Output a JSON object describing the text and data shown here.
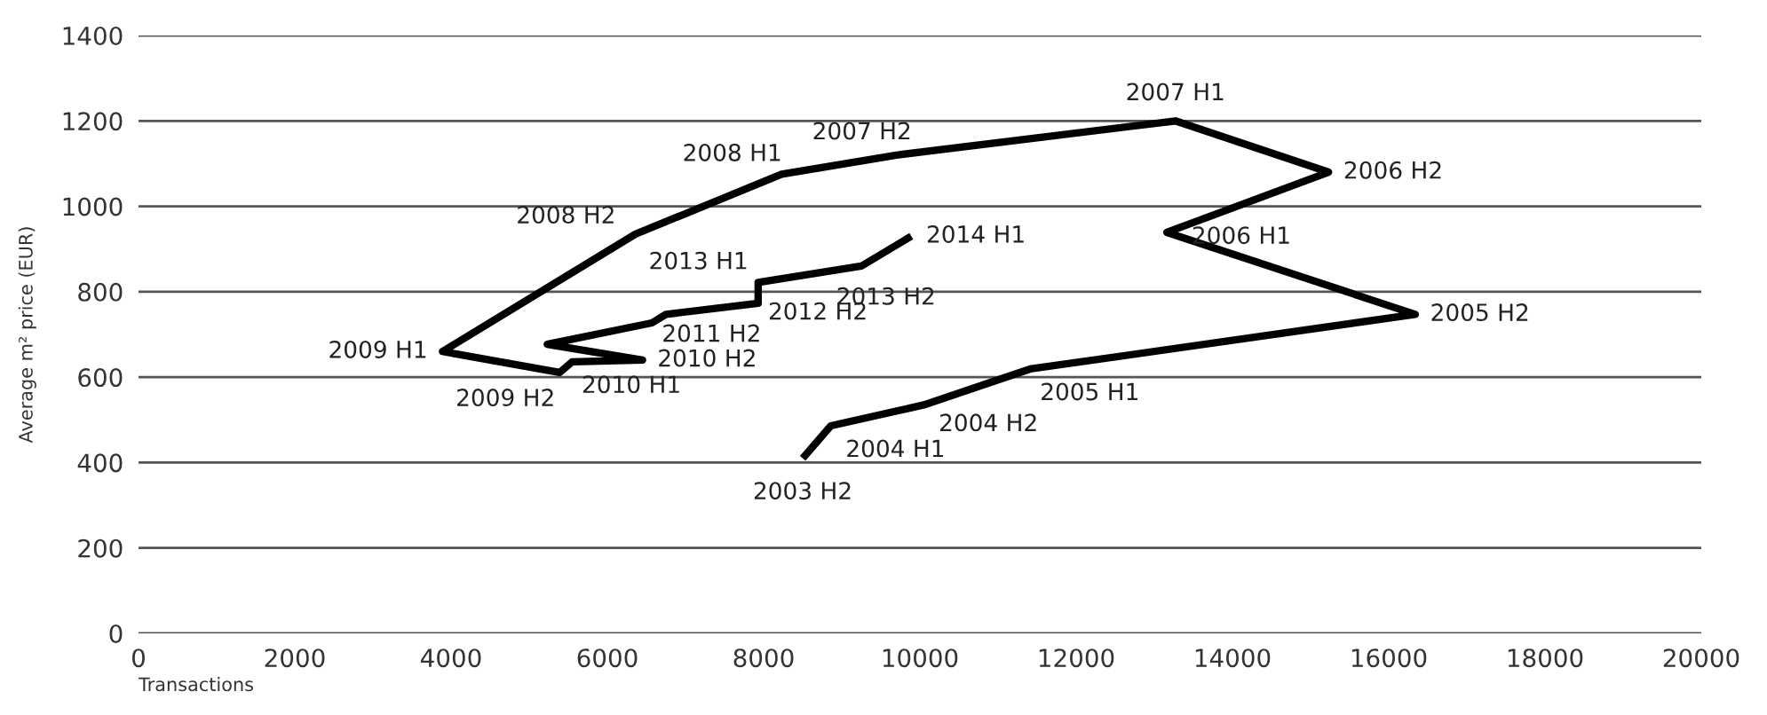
{
  "chart_data": {
    "type": "line",
    "xlabel": "Transactions",
    "ylabel": "Average m² price (EUR)",
    "x": [
      8500,
      8860,
      10050,
      11410,
      16340,
      13160,
      15230,
      13270,
      9700,
      8230,
      6360,
      3890,
      5390,
      5550,
      6450,
      5230,
      6570,
      6750,
      7930,
      7930,
      9250,
      9890
    ],
    "series": [
      {
        "color": "#000000",
        "values": [
          410,
          486,
          535,
          619,
          747,
          939,
          1080,
          1200,
          1120,
          1075,
          935,
          660,
          611,
          636,
          640,
          677,
          727,
          747,
          773,
          822,
          860,
          930
        ]
      }
    ],
    "xlim": [
      0,
      20000
    ],
    "xticks": [
      0,
      2000,
      4000,
      6000,
      8000,
      10000,
      12000,
      14000,
      16000,
      18000,
      20000
    ],
    "ylim": [
      0,
      1400
    ],
    "yticks": [
      0,
      200,
      400,
      600,
      800,
      1000,
      1200,
      1400
    ],
    "grid": "y",
    "marker": "none",
    "line_style": "solid",
    "annotations": [
      {
        "text": "2003 H2",
        "x": 8500,
        "y": 410
      },
      {
        "text": "2004 H1",
        "x": 8860,
        "y": 486
      },
      {
        "text": "2004 H2",
        "x": 10050,
        "y": 535
      },
      {
        "text": "2005 H1",
        "x": 11410,
        "y": 619
      },
      {
        "text": "2005 H2",
        "x": 16340,
        "y": 747
      },
      {
        "text": "2006 H1",
        "x": 13160,
        "y": 939
      },
      {
        "text": "2006 H2",
        "x": 15230,
        "y": 1080
      },
      {
        "text": "2007 H1",
        "x": 13270,
        "y": 1200
      },
      {
        "text": "2007 H2",
        "x": 9700,
        "y": 1120
      },
      {
        "text": "2008 H1",
        "x": 8230,
        "y": 1075
      },
      {
        "text": "2008 H2",
        "x": 6360,
        "y": 935
      },
      {
        "text": "2009 H1",
        "x": 3890,
        "y": 660
      },
      {
        "text": "2009 H2",
        "x": 5390,
        "y": 611
      },
      {
        "text": "2010 H1",
        "x": 5550,
        "y": 636
      },
      {
        "text": "2010 H2",
        "x": 6450,
        "y": 640
      },
      {
        "text": "2011 H2",
        "x": 6570,
        "y": 727
      },
      {
        "text": "2012 H2",
        "x": 7930,
        "y": 773
      },
      {
        "text": "2013 H1",
        "x": 7930,
        "y": 822
      },
      {
        "text": "2013 H2",
        "x": 9250,
        "y": 860
      },
      {
        "text": "2014 H1",
        "x": 9890,
        "y": 930
      }
    ]
  }
}
